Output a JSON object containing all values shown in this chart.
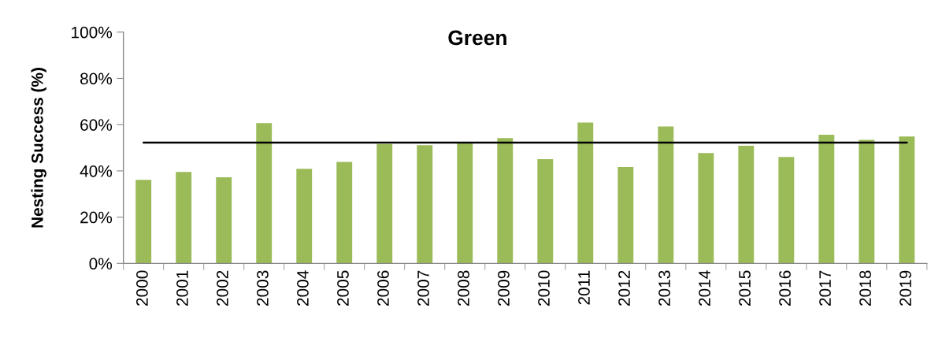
{
  "chart_data": {
    "type": "bar",
    "title": "Green",
    "ylabel": "Nesting Success (%)",
    "categories": [
      "2000",
      "2001",
      "2002",
      "2003",
      "2004",
      "2005",
      "2006",
      "2007",
      "2008",
      "2009",
      "2010",
      "2011",
      "2012",
      "2013",
      "2014",
      "2015",
      "2016",
      "2017",
      "2018",
      "2019"
    ],
    "values": [
      36.1,
      39.5,
      37.2,
      60.7,
      40.9,
      43.9,
      51.6,
      51.1,
      52.2,
      54.2,
      45.1,
      60.9,
      41.7,
      59.2,
      47.7,
      50.9,
      46.0,
      55.6,
      53.4,
      54.9
    ],
    "color": "#9bbb59",
    "ylim": [
      0,
      100
    ],
    "yticks": [
      {
        "value": 0,
        "label": "0%"
      },
      {
        "value": 20,
        "label": "20%"
      },
      {
        "value": 40,
        "label": "40%"
      },
      {
        "value": 60,
        "label": "60%"
      },
      {
        "value": 80,
        "label": "80%"
      },
      {
        "value": 100,
        "label": "100%"
      }
    ],
    "ref_lines": [
      {
        "axis": "y",
        "value": 52.2,
        "color": "#000000"
      }
    ]
  }
}
